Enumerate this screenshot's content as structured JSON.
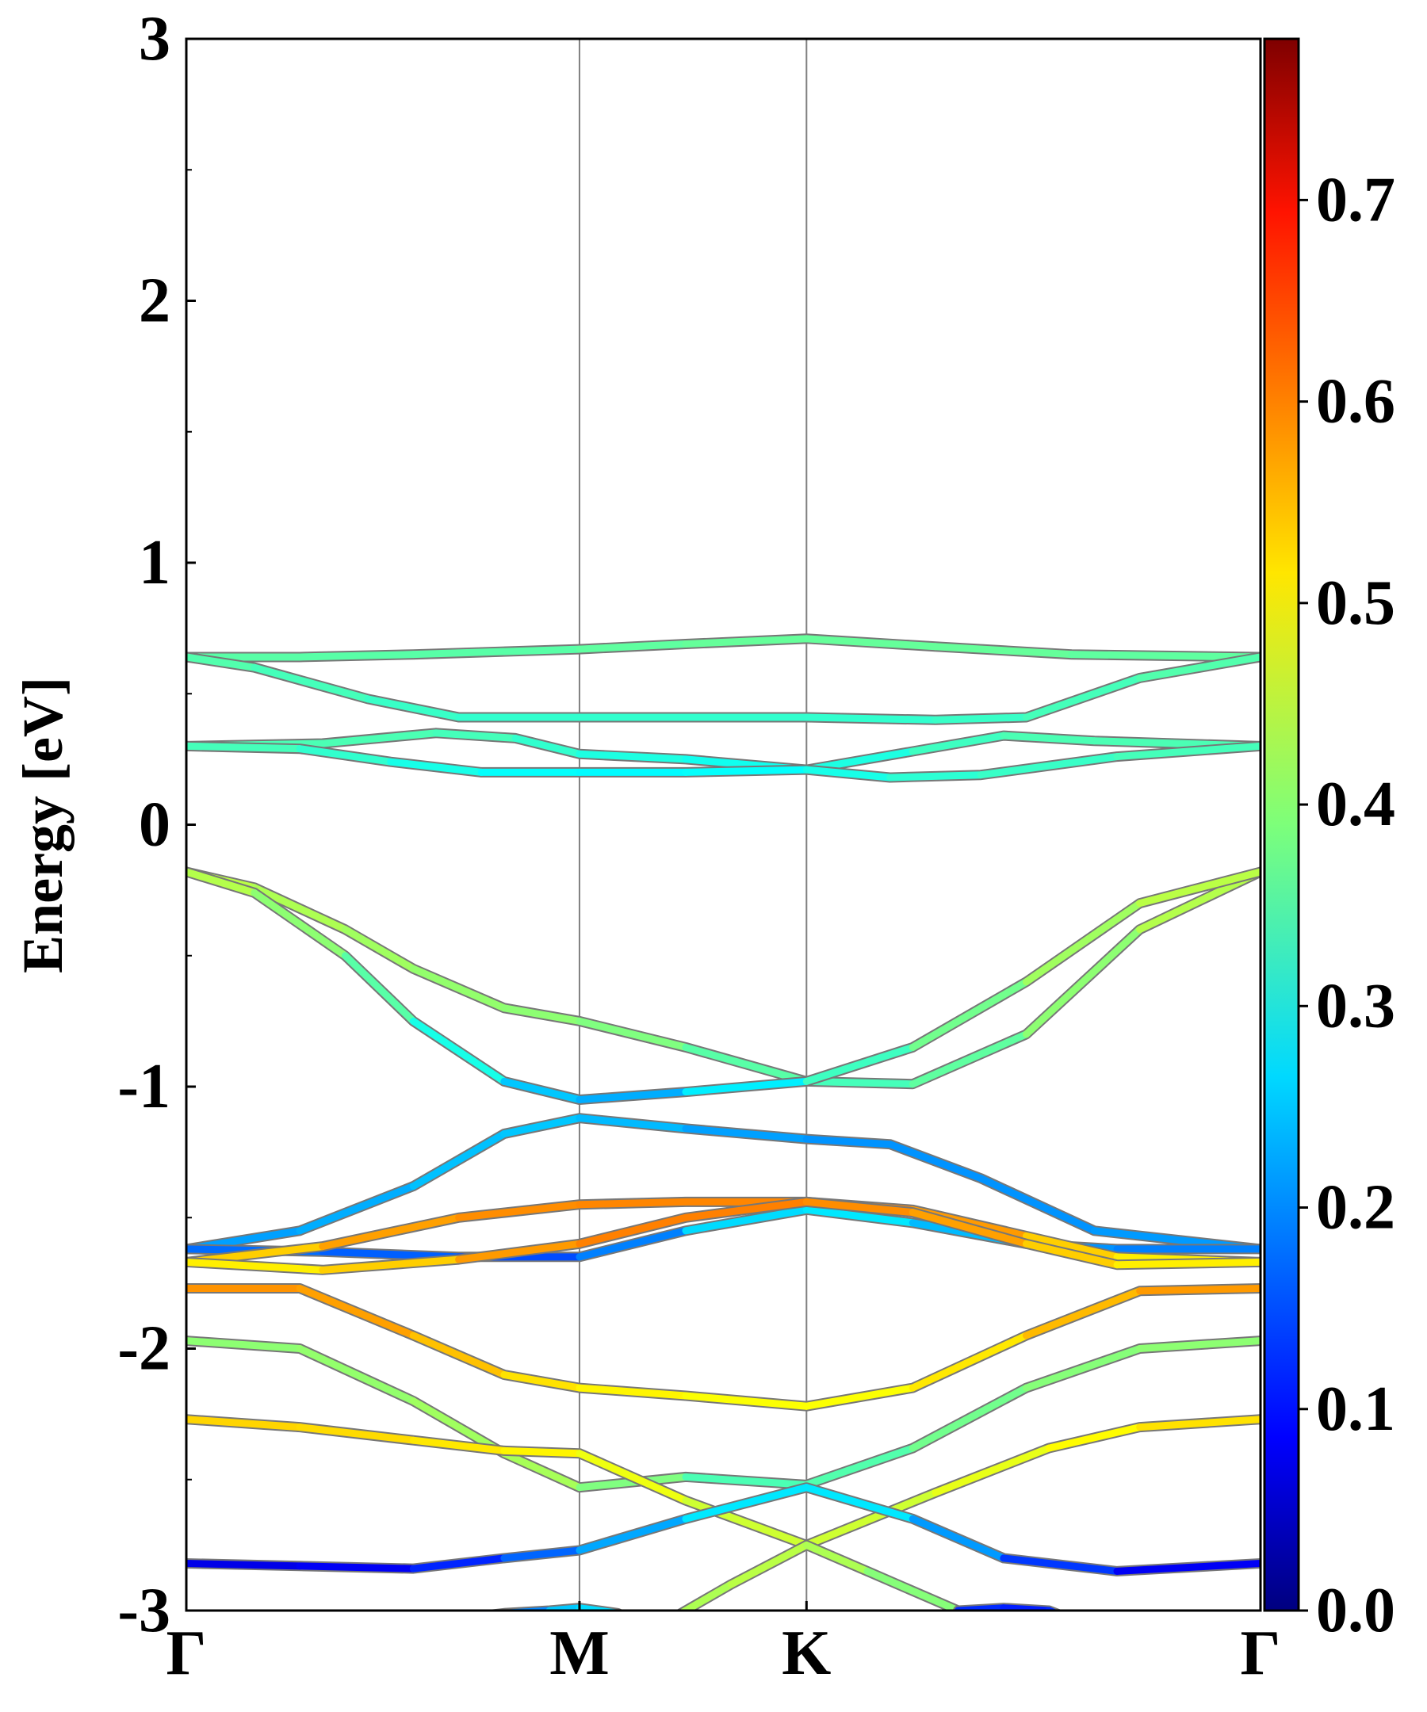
{
  "chart_data": {
    "type": "line",
    "title": "",
    "xlabel": "",
    "ylabel": "Energy [eV]",
    "ylim": [
      -3,
      3
    ],
    "y_ticks": [
      "3",
      "2",
      "1",
      "0",
      "-1",
      "-2",
      "-3"
    ],
    "y_tick_values": [
      3,
      2,
      1,
      0,
      -1,
      -2,
      -3
    ],
    "x_ticks": [
      "Γ",
      "M",
      "K",
      "Γ"
    ],
    "x_tick_positions": [
      0,
      1.732,
      2.732,
      4.732
    ],
    "xlim": [
      0,
      4.732
    ],
    "grid": "vertical lines at high-symmetry points",
    "colorbar": {
      "colormap": "jet",
      "range": [
        0.0,
        0.78
      ],
      "ticks": [
        "0.0",
        "0.1",
        "0.2",
        "0.3",
        "0.4",
        "0.5",
        "0.6",
        "0.7"
      ],
      "tick_values": [
        0.0,
        0.1,
        0.2,
        0.3,
        0.4,
        0.5,
        0.6,
        0.7
      ]
    },
    "series": [
      {
        "x": [
          0,
          0.5,
          1.0,
          1.732,
          2.2,
          2.732,
          3.3,
          3.9,
          4.732
        ],
        "y": [
          0.64,
          0.64,
          0.65,
          0.67,
          0.69,
          0.71,
          0.68,
          0.65,
          0.64
        ],
        "weights": [
          0.36,
          0.36,
          0.36,
          0.36,
          0.37,
          0.37,
          0.37,
          0.37,
          0.36
        ]
      },
      {
        "x": [
          0,
          0.3,
          0.8,
          1.2,
          1.732,
          2.2,
          2.732,
          3.3,
          3.7,
          4.2,
          4.732
        ],
        "y": [
          0.64,
          0.6,
          0.48,
          0.41,
          0.41,
          0.41,
          0.41,
          0.4,
          0.41,
          0.56,
          0.64
        ],
        "weights": [
          0.36,
          0.35,
          0.34,
          0.33,
          0.33,
          0.33,
          0.33,
          0.33,
          0.34,
          0.35,
          0.36
        ],
        "name": ""
      },
      {
        "x": [
          0,
          0.6,
          1.1,
          1.45,
          1.732,
          2.2,
          2.732,
          3.2,
          3.6,
          4.0,
          4.732
        ],
        "y": [
          0.3,
          0.31,
          0.35,
          0.33,
          0.27,
          0.25,
          0.21,
          0.28,
          0.34,
          0.32,
          0.3
        ],
        "weights": [
          0.35,
          0.35,
          0.35,
          0.34,
          0.32,
          0.31,
          0.3,
          0.33,
          0.35,
          0.35,
          0.35
        ]
      },
      {
        "x": [
          0,
          0.5,
          0.9,
          1.3,
          1.732,
          2.2,
          2.732,
          3.1,
          3.5,
          4.1,
          4.732
        ],
        "y": [
          0.3,
          0.29,
          0.24,
          0.2,
          0.2,
          0.2,
          0.21,
          0.18,
          0.19,
          0.26,
          0.3
        ],
        "weights": [
          0.35,
          0.34,
          0.32,
          0.3,
          0.29,
          0.29,
          0.3,
          0.32,
          0.33,
          0.34,
          0.35
        ]
      },
      {
        "x": [
          0,
          0.3,
          0.7,
          1.0,
          1.4,
          1.732,
          2.2,
          2.732,
          3.2,
          3.7,
          4.2,
          4.732
        ],
        "y": [
          -0.18,
          -0.24,
          -0.4,
          -0.55,
          -0.7,
          -0.75,
          -0.85,
          -0.98,
          -0.99,
          -0.8,
          -0.4,
          -0.18
        ],
        "weights": [
          0.44,
          0.43,
          0.42,
          0.41,
          0.4,
          0.4,
          0.38,
          0.34,
          0.35,
          0.38,
          0.42,
          0.44
        ]
      },
      {
        "x": [
          0,
          0.3,
          0.7,
          1.0,
          1.4,
          1.732,
          2.2,
          2.732,
          3.2,
          3.7,
          4.2,
          4.732
        ],
        "y": [
          -0.18,
          -0.26,
          -0.5,
          -0.75,
          -0.98,
          -1.05,
          -1.02,
          -0.98,
          -0.85,
          -0.6,
          -0.3,
          -0.18
        ],
        "weights": [
          0.44,
          0.42,
          0.38,
          0.34,
          0.28,
          0.22,
          0.24,
          0.32,
          0.36,
          0.4,
          0.43,
          0.44
        ]
      },
      {
        "x": [
          0,
          0.5,
          1.0,
          1.4,
          1.732,
          2.2,
          2.732,
          3.1,
          3.5,
          4.0,
          4.732
        ],
        "y": [
          -1.62,
          -1.55,
          -1.38,
          -1.18,
          -1.12,
          -1.16,
          -1.2,
          -1.22,
          -1.35,
          -1.55,
          -1.62
        ],
        "weights": [
          0.22,
          0.22,
          0.24,
          0.25,
          0.25,
          0.23,
          0.21,
          0.21,
          0.21,
          0.21,
          0.22
        ]
      },
      {
        "x": [
          0,
          0.6,
          1.2,
          1.732,
          2.2,
          2.732,
          3.2,
          3.7,
          4.1,
          4.732
        ],
        "y": [
          -1.62,
          -1.63,
          -1.65,
          -1.65,
          -1.55,
          -1.47,
          -1.52,
          -1.6,
          -1.62,
          -1.62
        ],
        "weights": [
          0.18,
          0.18,
          0.16,
          0.15,
          0.24,
          0.29,
          0.26,
          0.22,
          0.2,
          0.19
        ]
      },
      {
        "x": [
          0,
          0.6,
          1.2,
          1.732,
          2.2,
          2.732,
          3.2,
          3.7,
          4.1,
          4.732
        ],
        "y": [
          -1.67,
          -1.61,
          -1.5,
          -1.45,
          -1.44,
          -1.44,
          -1.47,
          -1.57,
          -1.65,
          -1.67
        ],
        "weights": [
          0.5,
          0.55,
          0.57,
          0.58,
          0.58,
          0.58,
          0.58,
          0.55,
          0.5,
          0.5
        ]
      },
      {
        "x": [
          0,
          0.6,
          1.2,
          1.732,
          2.2,
          2.732,
          3.2,
          3.7,
          4.1,
          4.732
        ],
        "y": [
          -1.67,
          -1.7,
          -1.66,
          -1.6,
          -1.5,
          -1.44,
          -1.48,
          -1.6,
          -1.68,
          -1.67
        ],
        "weights": [
          0.5,
          0.5,
          0.55,
          0.58,
          0.59,
          0.58,
          0.57,
          0.55,
          0.5,
          0.5
        ]
      },
      {
        "x": [
          0,
          0.5,
          1.0,
          1.4,
          1.732,
          2.2,
          2.732,
          3.2,
          3.7,
          4.2,
          4.732
        ],
        "y": [
          -1.77,
          -1.77,
          -1.95,
          -2.1,
          -2.15,
          -2.18,
          -2.22,
          -2.15,
          -1.95,
          -1.78,
          -1.77
        ],
        "weights": [
          0.57,
          0.57,
          0.55,
          0.52,
          0.5,
          0.49,
          0.48,
          0.49,
          0.52,
          0.56,
          0.57
        ]
      },
      {
        "x": [
          0,
          0.5,
          1.0,
          1.4,
          1.732,
          2.2,
          2.732,
          3.2,
          3.7,
          4.2,
          4.732
        ],
        "y": [
          -1.97,
          -2.0,
          -2.2,
          -2.4,
          -2.53,
          -2.49,
          -2.52,
          -2.38,
          -2.15,
          -2.0,
          -1.97
        ],
        "weights": [
          0.4,
          0.4,
          0.41,
          0.42,
          0.42,
          0.36,
          0.34,
          0.37,
          0.39,
          0.4,
          0.4
        ]
      },
      {
        "x": [
          0,
          0.5,
          1.0,
          1.4,
          1.732,
          2.2,
          2.732,
          3.3,
          3.8,
          4.2,
          4.732
        ],
        "y": [
          -2.27,
          -2.3,
          -2.35,
          -2.39,
          -2.4,
          -2.58,
          -2.75,
          -2.55,
          -2.38,
          -2.3,
          -2.27
        ],
        "weights": [
          0.52,
          0.52,
          0.51,
          0.5,
          0.49,
          0.46,
          0.44,
          0.46,
          0.48,
          0.5,
          0.52
        ]
      },
      {
        "x": [
          0,
          0.5,
          1.0,
          1.4,
          1.732,
          2.2,
          2.732,
          3.2,
          3.6,
          4.1,
          4.732
        ],
        "y": [
          -2.82,
          -2.83,
          -2.84,
          -2.8,
          -2.77,
          -2.65,
          -2.53,
          -2.65,
          -2.8,
          -2.85,
          -2.82
        ],
        "weights": [
          0.08,
          0.08,
          0.1,
          0.15,
          0.2,
          0.25,
          0.3,
          0.25,
          0.18,
          0.1,
          0.08
        ]
      },
      {
        "x": [
          1.0,
          1.4,
          1.6,
          1.732,
          1.9,
          2.0
        ],
        "y": [
          -3.05,
          -3.01,
          -3.0,
          -2.99,
          -3.01,
          -3.05
        ],
        "weights": [
          0.15,
          0.18,
          0.22,
          0.28,
          0.25,
          0.2
        ]
      },
      {
        "x": [
          2.1,
          2.4,
          2.732,
          3.0,
          3.4,
          3.6
        ],
        "y": [
          -3.05,
          -2.9,
          -2.75,
          -2.85,
          -3.0,
          -3.05
        ],
        "weights": [
          0.42,
          0.43,
          0.44,
          0.41,
          0.38,
          0.36
        ]
      },
      {
        "x": [
          3.4,
          3.6,
          3.8,
          3.95
        ],
        "y": [
          -3.0,
          -2.99,
          -3.0,
          -3.05
        ],
        "weights": [
          0.14,
          0.12,
          0.12,
          0.14
        ]
      }
    ]
  }
}
